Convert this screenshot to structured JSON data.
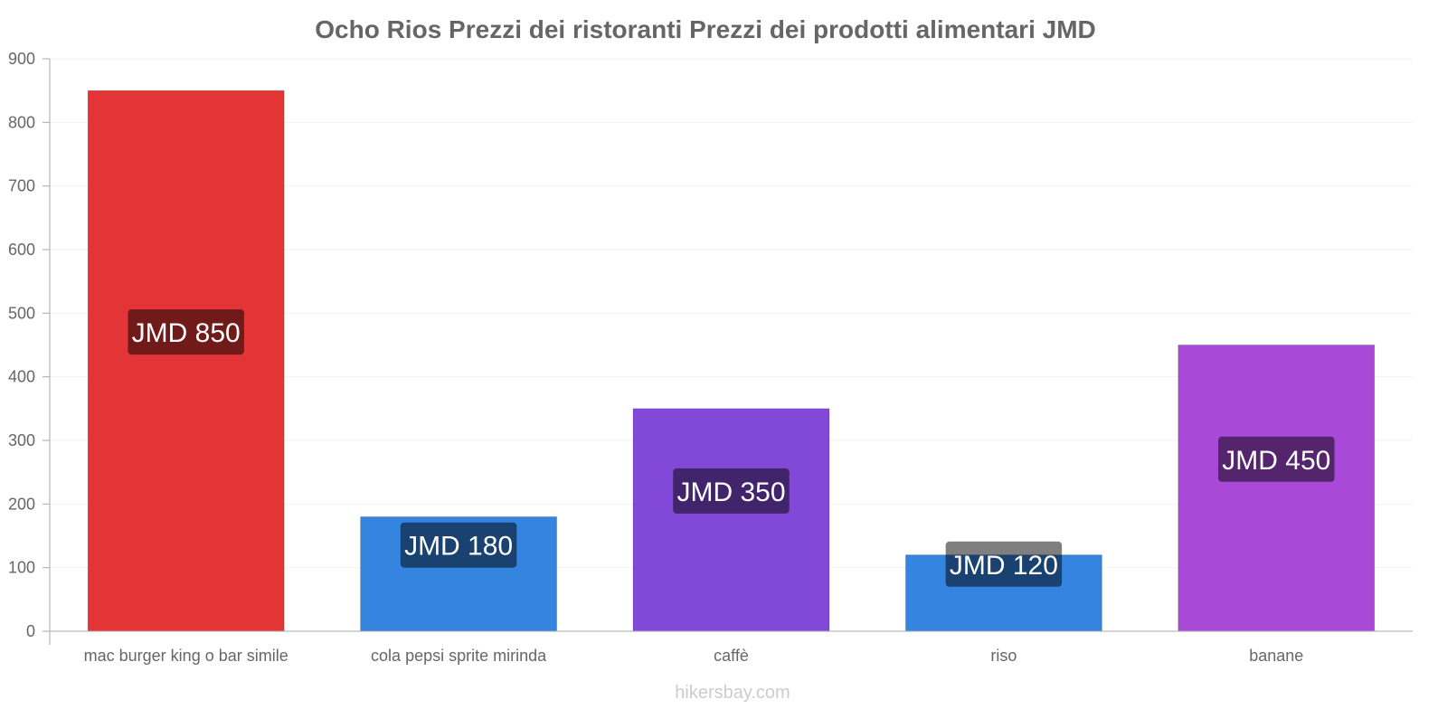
{
  "chart_data": {
    "type": "bar",
    "title": "Ocho Rios Prezzi dei ristoranti Prezzi dei prodotti alimentari JMD",
    "categories": [
      "mac burger king o bar simile",
      "cola pepsi sprite mirinda",
      "caffè",
      "riso",
      "banane"
    ],
    "values": [
      850,
      180,
      350,
      120,
      450
    ],
    "data_labels": [
      "JMD 850",
      "JMD 180",
      "JMD 350",
      "JMD 120",
      "JMD 450"
    ],
    "colors": [
      "#e33535",
      "#3584e0",
      "#8249d8",
      "#3584e0",
      "#a849d8"
    ],
    "yticks": [
      0,
      100,
      200,
      300,
      400,
      500,
      600,
      700,
      800,
      900
    ],
    "ylim": [
      0,
      900
    ],
    "xlabel": "",
    "ylabel": "",
    "grid": true,
    "legend": "none"
  },
  "watermark": "hikersbay.com"
}
